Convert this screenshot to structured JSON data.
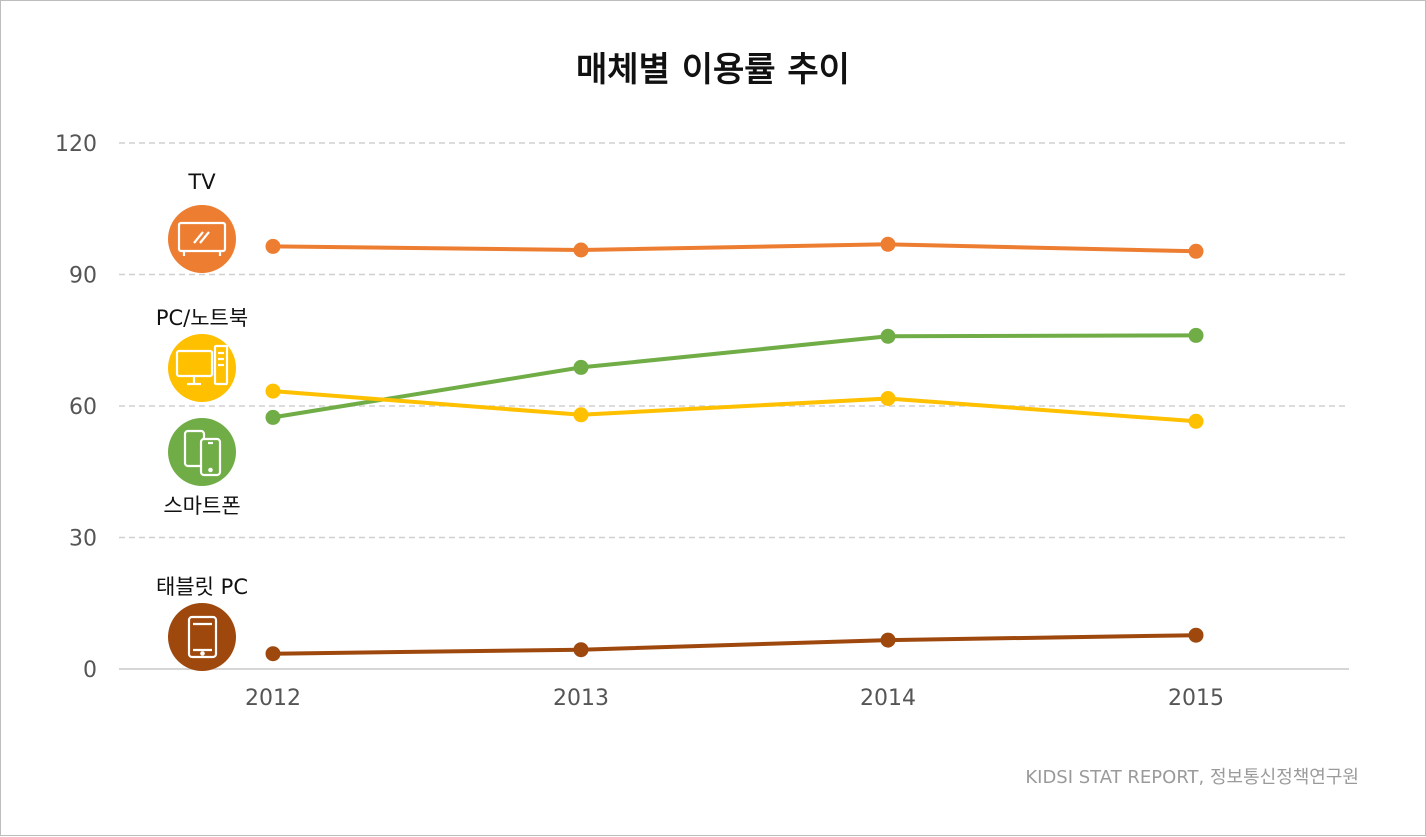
{
  "chart_data": {
    "type": "line",
    "title": "매체별 이용률 추이",
    "categories": [
      "2012",
      "2013",
      "2014",
      "2015"
    ],
    "ylim": [
      0,
      120
    ],
    "yticks": [
      "0",
      "30",
      "60",
      "90",
      "120"
    ],
    "grid": true,
    "series": [
      {
        "name": "TV",
        "color": "#ED7D31",
        "icon": "tv-icon",
        "values": [
          96.4,
          95.6,
          96.9,
          95.3
        ]
      },
      {
        "name": "PC/노트북",
        "color": "#FFC000",
        "icon": "desktop-pc-icon",
        "values": [
          63.4,
          58.0,
          61.7,
          56.5
        ]
      },
      {
        "name": "스마트폰",
        "color": "#70AD47",
        "icon": "smartphone-icon",
        "values": [
          57.4,
          68.8,
          75.9,
          76.1
        ]
      },
      {
        "name": "태블릿 PC",
        "color": "#9E480E",
        "icon": "tablet-icon",
        "values": [
          3.5,
          4.4,
          6.6,
          7.7
        ]
      }
    ],
    "source": "KIDSI STAT REPORT, 정보통신정책연구원"
  }
}
